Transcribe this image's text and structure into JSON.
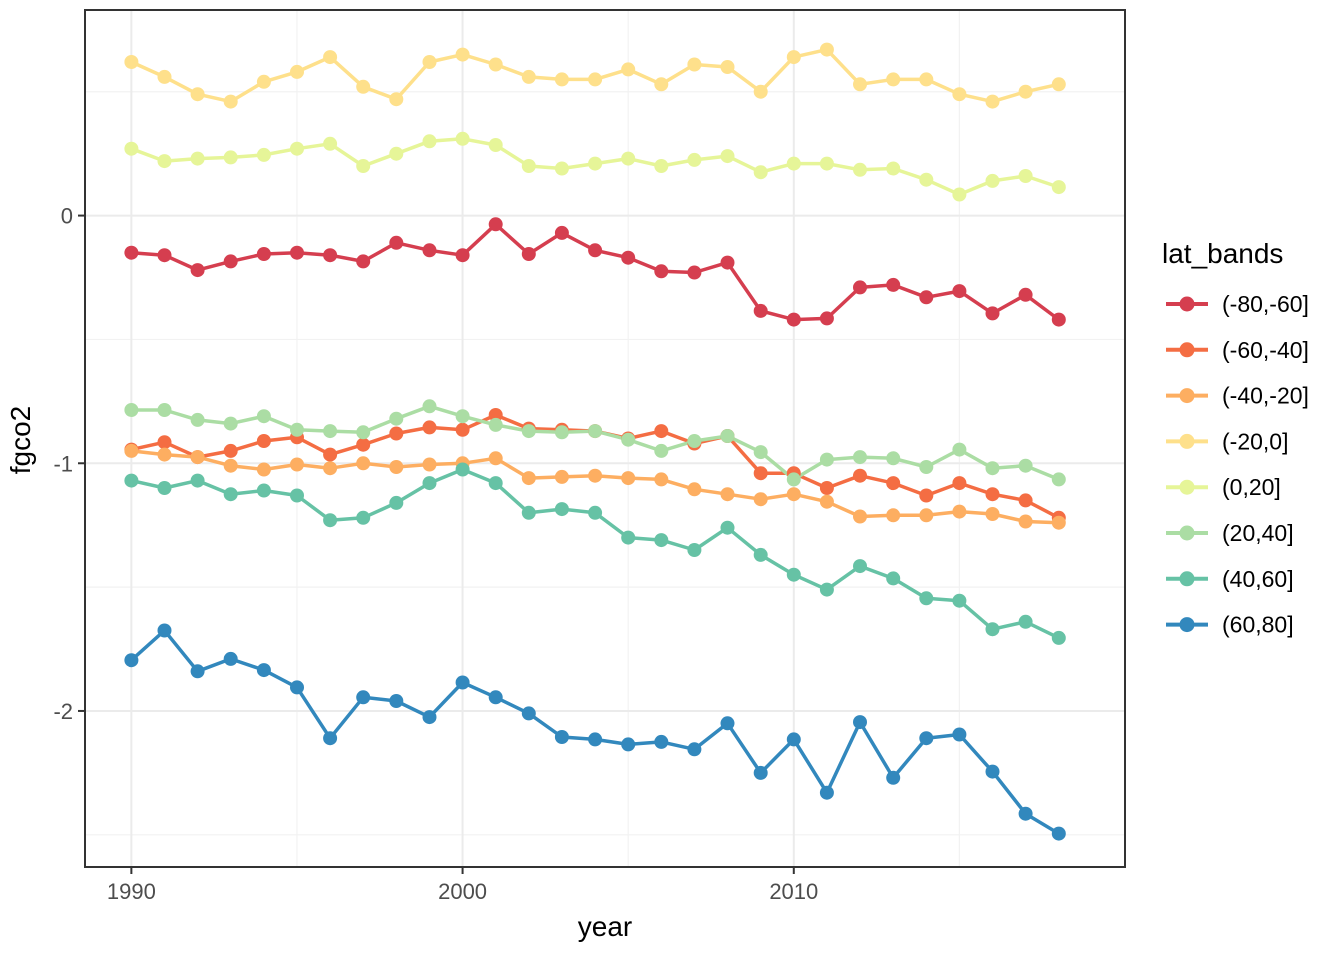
{
  "chart_data": {
    "type": "line",
    "title": "",
    "xlabel": "year",
    "ylabel": "fgco2",
    "legend_title": "lat_bands",
    "legend_position": "right",
    "grid": true,
    "x_ticks": [
      1990,
      2000,
      2010
    ],
    "x_minor": [
      1995,
      2005,
      2015
    ],
    "y_ticks": [
      0,
      -1,
      -2
    ],
    "y_minor": [
      0.5,
      -0.5,
      -1.5,
      -2.5
    ],
    "xlim": [
      1988.6,
      2020.0
    ],
    "ylim": [
      -2.63,
      0.83
    ],
    "x": [
      1990,
      1991,
      1992,
      1993,
      1994,
      1995,
      1996,
      1997,
      1998,
      1999,
      2000,
      2001,
      2002,
      2003,
      2004,
      2005,
      2006,
      2007,
      2008,
      2009,
      2010,
      2011,
      2012,
      2013,
      2014,
      2015,
      2016,
      2017,
      2018
    ],
    "series": [
      {
        "name": "(-80,-60]",
        "color": "#D53E4F",
        "values": [
          -0.15,
          -0.16,
          -0.22,
          -0.185,
          -0.155,
          -0.15,
          -0.16,
          -0.185,
          -0.11,
          -0.14,
          -0.16,
          -0.035,
          -0.155,
          -0.07,
          -0.14,
          -0.17,
          -0.225,
          -0.23,
          -0.19,
          -0.385,
          -0.42,
          -0.415,
          -0.29,
          -0.28,
          -0.33,
          -0.305,
          -0.395,
          -0.32,
          -0.42
        ]
      },
      {
        "name": "(-60,-40]",
        "color": "#F46D43",
        "values": [
          -0.945,
          -0.915,
          -0.975,
          -0.95,
          -0.91,
          -0.895,
          -0.965,
          -0.925,
          -0.88,
          -0.855,
          -0.865,
          -0.805,
          -0.86,
          -0.865,
          -0.87,
          -0.9,
          -0.87,
          -0.92,
          -0.89,
          -1.04,
          -1.04,
          -1.1,
          -1.05,
          -1.08,
          -1.13,
          -1.08,
          -1.125,
          -1.15,
          -1.22
        ]
      },
      {
        "name": "(-40,-20]",
        "color": "#FDAE61",
        "values": [
          -0.95,
          -0.965,
          -0.975,
          -1.01,
          -1.025,
          -1.005,
          -1.02,
          -1.0,
          -1.015,
          -1.005,
          -1.0,
          -0.98,
          -1.06,
          -1.055,
          -1.05,
          -1.06,
          -1.065,
          -1.105,
          -1.125,
          -1.145,
          -1.125,
          -1.155,
          -1.215,
          -1.21,
          -1.21,
          -1.195,
          -1.205,
          -1.235,
          -1.24
        ]
      },
      {
        "name": "(-20,0]",
        "color": "#FEE08B",
        "values": [
          0.62,
          0.56,
          0.49,
          0.46,
          0.54,
          0.58,
          0.64,
          0.52,
          0.47,
          0.62,
          0.65,
          0.61,
          0.56,
          0.55,
          0.55,
          0.59,
          0.53,
          0.61,
          0.6,
          0.5,
          0.64,
          0.67,
          0.53,
          0.55,
          0.55,
          0.49,
          0.46,
          0.5,
          0.53
        ]
      },
      {
        "name": "(0,20]",
        "color": "#E6F598",
        "values": [
          0.27,
          0.22,
          0.23,
          0.235,
          0.245,
          0.27,
          0.29,
          0.2,
          0.25,
          0.3,
          0.31,
          0.285,
          0.2,
          0.19,
          0.21,
          0.23,
          0.2,
          0.225,
          0.24,
          0.175,
          0.21,
          0.21,
          0.185,
          0.19,
          0.145,
          0.085,
          0.14,
          0.16,
          0.115
        ]
      },
      {
        "name": "(20,40]",
        "color": "#ABDDA4",
        "values": [
          -0.785,
          -0.785,
          -0.825,
          -0.84,
          -0.81,
          -0.865,
          -0.87,
          -0.875,
          -0.82,
          -0.77,
          -0.81,
          -0.845,
          -0.87,
          -0.875,
          -0.87,
          -0.905,
          -0.95,
          -0.91,
          -0.89,
          -0.955,
          -1.065,
          -0.985,
          -0.975,
          -0.98,
          -1.015,
          -0.945,
          -1.02,
          -1.01,
          -1.065
        ]
      },
      {
        "name": "(40,60]",
        "color": "#66C2A5",
        "values": [
          -1.07,
          -1.1,
          -1.07,
          -1.125,
          -1.11,
          -1.13,
          -1.23,
          -1.22,
          -1.16,
          -1.08,
          -1.025,
          -1.08,
          -1.2,
          -1.185,
          -1.2,
          -1.3,
          -1.31,
          -1.35,
          -1.26,
          -1.37,
          -1.45,
          -1.51,
          -1.415,
          -1.465,
          -1.545,
          -1.555,
          -1.67,
          -1.64,
          -1.705
        ]
      },
      {
        "name": "(60,80]",
        "color": "#3288BD",
        "values": [
          -1.795,
          -1.675,
          -1.84,
          -1.79,
          -1.835,
          -1.905,
          -2.11,
          -1.945,
          -1.96,
          -2.025,
          -1.885,
          -1.945,
          -2.01,
          -2.105,
          -2.115,
          -2.135,
          -2.125,
          -2.155,
          -2.05,
          -2.25,
          -2.115,
          -2.33,
          -2.045,
          -2.27,
          -2.11,
          -2.095,
          -2.245,
          -2.415,
          -2.495
        ]
      }
    ],
    "style": {
      "panel_border": "#333333",
      "grid_major": "#EBEBEB",
      "grid_minor": "#F2F2F2",
      "tick_color": "#333333",
      "tick_label_color": "#4D4D4D",
      "axis_title_color": "#000000",
      "legend_text_color": "#000000",
      "background": "#FFFFFF"
    }
  }
}
